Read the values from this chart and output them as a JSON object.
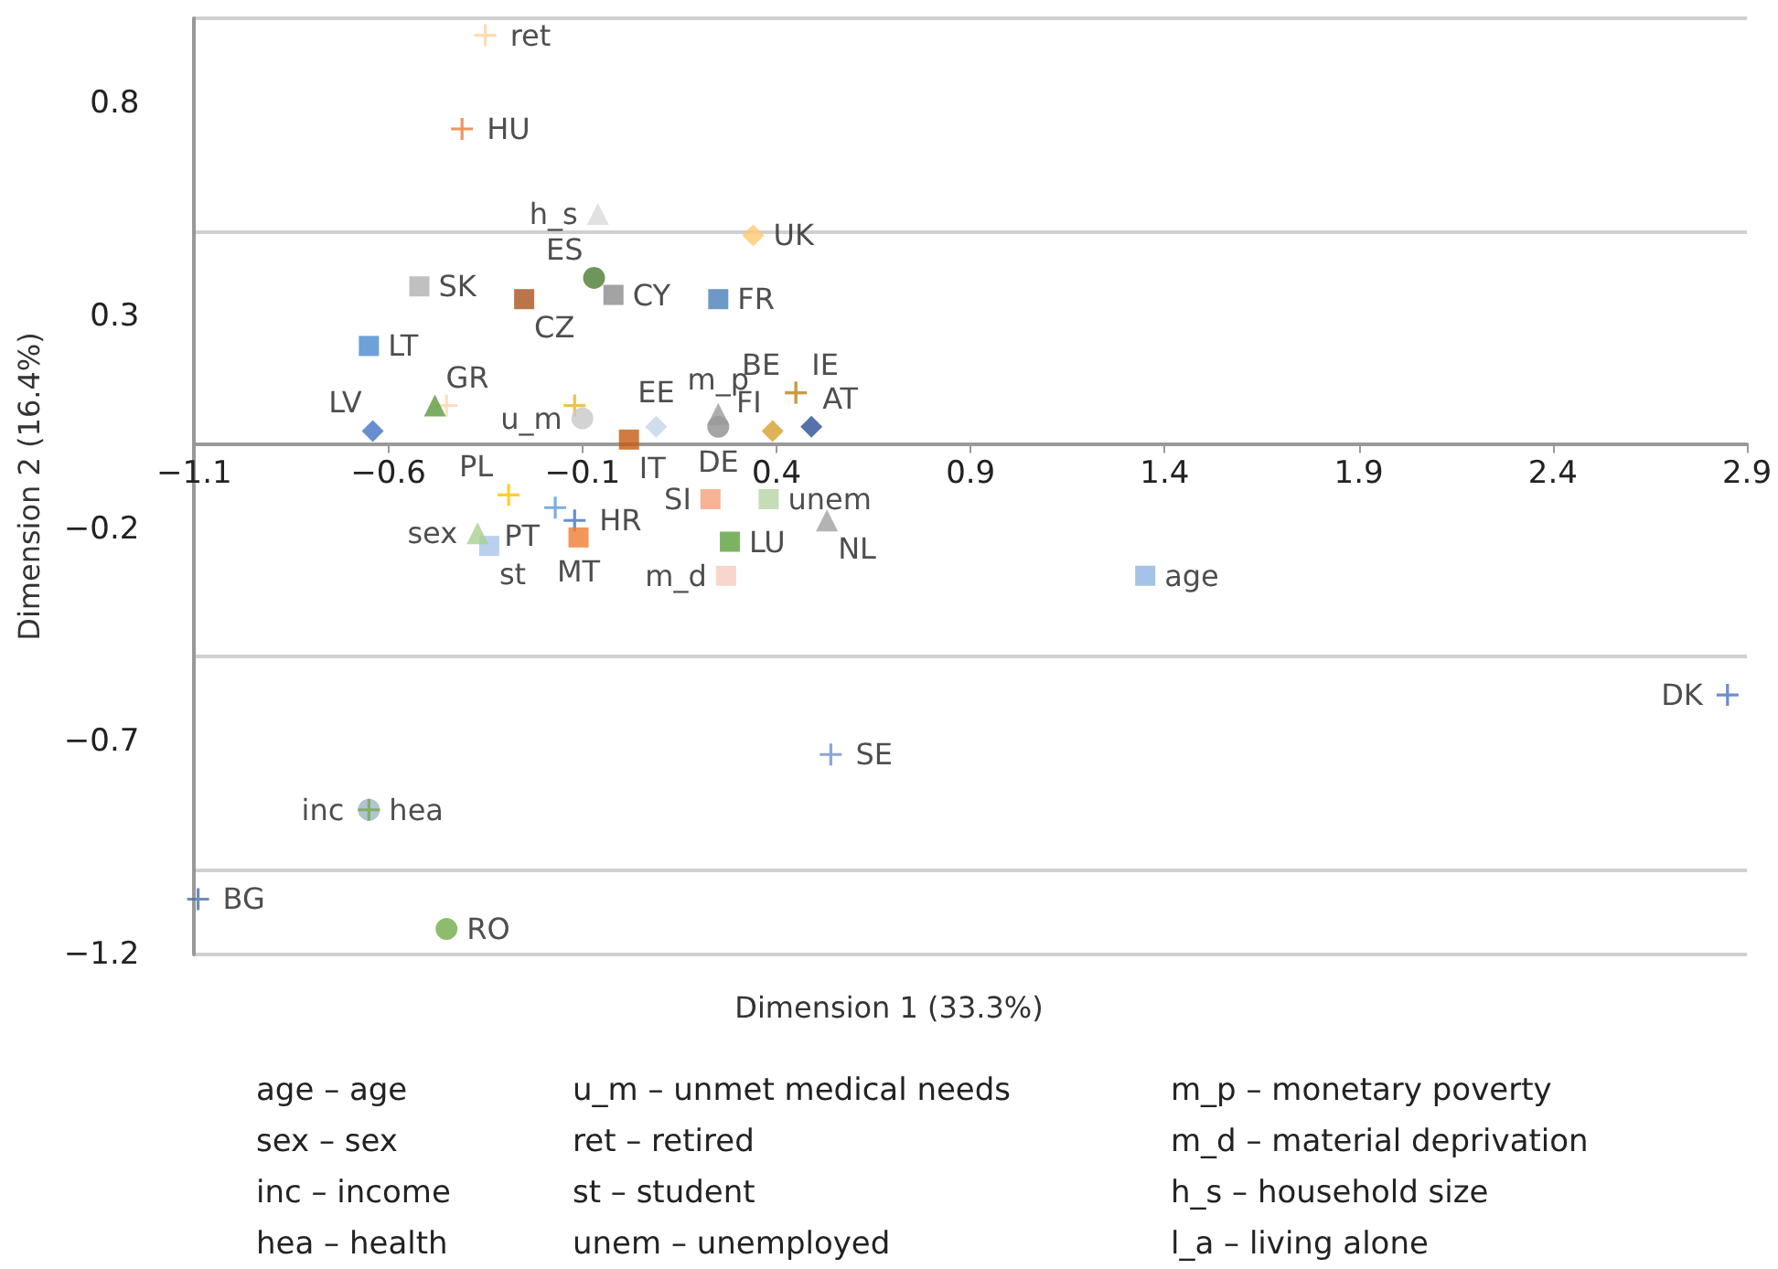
{
  "chart_data": {
    "type": "scatter",
    "xlabel": "Dimension 1 (33.3%)",
    "ylabel": "Dimension 2 (16.4%)",
    "xlim": [
      -1.1,
      2.9
    ],
    "xticks": [
      -1.1,
      -0.6,
      -0.1,
      0.4,
      0.9,
      1.4,
      1.9,
      2.4,
      2.9
    ],
    "ylim": [
      -1.2,
      1.0
    ],
    "yticks": [
      -1.2,
      -0.7,
      -0.2,
      0.3,
      0.8
    ],
    "grid": "y",
    "series": [
      {
        "name": "ret",
        "color": "#fcd59b",
        "marker": "cross",
        "x": [
          -0.35
        ],
        "values": [
          0.96
        ]
      },
      {
        "name": "HU",
        "color": "#e97b37",
        "marker": "cross",
        "x": [
          -0.41
        ],
        "values": [
          0.74
        ]
      },
      {
        "name": "h_s",
        "color": "#d9d9d9",
        "marker": "triangle",
        "x": [
          -0.06
        ],
        "values": [
          0.54
        ]
      },
      {
        "name": "UK",
        "color": "#ffc96e",
        "marker": "diamond",
        "x": [
          0.34
        ],
        "values": [
          0.49
        ]
      },
      {
        "name": "SK",
        "color": "#b0b0b0",
        "marker": "square",
        "x": [
          -0.52
        ],
        "values": [
          0.37
        ]
      },
      {
        "name": "CZ",
        "color": "#a9521e",
        "marker": "square",
        "x": [
          -0.25
        ],
        "values": [
          0.34
        ]
      },
      {
        "name": "ES",
        "color": "#4a7c2e",
        "marker": "circle",
        "x": [
          -0.07
        ],
        "values": [
          0.39
        ]
      },
      {
        "name": "CY",
        "color": "#8c8c8c",
        "marker": "square",
        "x": [
          -0.02
        ],
        "values": [
          0.35
        ]
      },
      {
        "name": "FR",
        "color": "#4a7fb8",
        "marker": "square",
        "x": [
          0.25
        ],
        "values": [
          0.34
        ]
      },
      {
        "name": "LT",
        "color": "#4a8ad0",
        "marker": "square",
        "x": [
          -0.65
        ],
        "values": [
          0.23
        ]
      },
      {
        "name": "GR",
        "color": "#5a9a3c",
        "marker": "triangle",
        "x": [
          -0.48
        ],
        "values": [
          0.09
        ]
      },
      {
        "color": "#fcd5b4",
        "marker": "cross",
        "x": [
          -0.45
        ],
        "values": [
          0.09
        ]
      },
      {
        "name": "LV",
        "color": "#4472c4",
        "marker": "diamond",
        "x": [
          -0.64
        ],
        "values": [
          0.03
        ]
      },
      {
        "color": "#e8b030",
        "marker": "cross",
        "x": [
          -0.12
        ],
        "values": [
          0.09
        ]
      },
      {
        "name": "u_m",
        "color": "#c8c8c8",
        "marker": "circle",
        "x": [
          -0.1
        ],
        "values": [
          0.06
        ]
      },
      {
        "name": "IT",
        "color": "#c55a11",
        "marker": "square",
        "x": [
          0.02
        ],
        "values": [
          0.01
        ]
      },
      {
        "name": "EE",
        "color": "#c5d3ea",
        "marker": "diamond",
        "x": [
          0.09
        ],
        "values": [
          0.04
        ]
      },
      {
        "name": "m_p",
        "color": "#9a9a9a",
        "marker": "triangle",
        "x": [
          0.25
        ],
        "values": [
          0.07
        ]
      },
      {
        "name": "DE",
        "color": "#8f8f8f",
        "marker": "circle",
        "x": [
          0.25
        ],
        "values": [
          0.04
        ]
      },
      {
        "name": "IE",
        "color": "#c8963c",
        "marker": "cross",
        "x": [
          0.45
        ],
        "values": [
          0.12
        ]
      },
      {
        "name": "BE",
        "color": "#c8963c",
        "marker": "cross",
        "x": [
          0.45
        ],
        "values": [
          0.12
        ]
      },
      {
        "name": "FI",
        "color": "#d4a02a",
        "marker": "diamond",
        "x": [
          0.39
        ],
        "values": [
          0.03
        ]
      },
      {
        "name": "AT",
        "color": "#2a4f96",
        "marker": "diamond",
        "x": [
          0.49
        ],
        "values": [
          0.04
        ]
      },
      {
        "name": "SI",
        "color": "#f4a07a",
        "marker": "square",
        "x": [
          0.23
        ],
        "values": [
          -0.13
        ]
      },
      {
        "name": "unem",
        "color": "#b5d5a4",
        "marker": "square",
        "x": [
          0.38
        ],
        "values": [
          -0.13
        ]
      },
      {
        "name": "NL",
        "color": "#a0a0a0",
        "marker": "triangle",
        "x": [
          0.53
        ],
        "values": [
          -0.18
        ]
      },
      {
        "name": "LU",
        "color": "#5aa03c",
        "marker": "square",
        "x": [
          0.28
        ],
        "values": [
          -0.23
        ]
      },
      {
        "name": "m_d",
        "color": "#f6cbc0",
        "marker": "square",
        "x": [
          0.27
        ],
        "values": [
          -0.31
        ]
      },
      {
        "name": "age",
        "color": "#8fb4e0",
        "marker": "square",
        "x": [
          1.35
        ],
        "values": [
          -0.31
        ]
      },
      {
        "name": "PL",
        "color": "#ffc000",
        "marker": "cross",
        "x": [
          -0.29
        ],
        "values": [
          -0.12
        ]
      },
      {
        "name": "PT",
        "color": "#5b9bd5",
        "marker": "cross",
        "x": [
          -0.17
        ],
        "values": [
          -0.15
        ]
      },
      {
        "name": "HR",
        "color": "#4472c4",
        "marker": "cross",
        "x": [
          -0.12
        ],
        "values": [
          -0.18
        ]
      },
      {
        "name": "MT",
        "color": "#ed7d31",
        "marker": "square",
        "x": [
          -0.11
        ],
        "values": [
          -0.22
        ]
      },
      {
        "name": "sex",
        "color": "#a9d08e",
        "marker": "triangle",
        "x": [
          -0.37
        ],
        "values": [
          -0.21
        ]
      },
      {
        "name": "st",
        "color": "#a9c4eb",
        "marker": "square",
        "x": [
          -0.34
        ],
        "values": [
          -0.24
        ]
      },
      {
        "name": "SE",
        "color": "#6f8fd0",
        "marker": "cross",
        "x": [
          0.54
        ],
        "values": [
          -0.73
        ]
      },
      {
        "name": "DK",
        "color": "#4472c4",
        "marker": "cross",
        "x": [
          2.85
        ],
        "values": [
          -0.59
        ]
      },
      {
        "name": "hea",
        "color": "#9fb4c8",
        "marker": "circle",
        "x": [
          -0.65
        ],
        "values": [
          -0.86
        ]
      },
      {
        "name": "inc",
        "color": "#70ad47",
        "marker": "cross",
        "x": [
          -0.65
        ],
        "values": [
          -0.86
        ]
      },
      {
        "name": "BG",
        "color": "#4a6fa5",
        "marker": "cross",
        "x": [
          -1.09
        ],
        "values": [
          -1.07
        ]
      },
      {
        "name": "RO",
        "color": "#70ad47",
        "marker": "circle",
        "x": [
          -0.45
        ],
        "values": [
          -1.14
        ]
      }
    ],
    "annotations": [
      "age – age",
      "sex – sex",
      "inc – income",
      "hea – health",
      "u_m – unmet medical needs",
      "ret – retired",
      "st – student",
      "unem – unemployed",
      "m_p – monetary poverty",
      "m_d – material deprivation",
      "h_s – household size",
      "l_a – living alone"
    ]
  }
}
